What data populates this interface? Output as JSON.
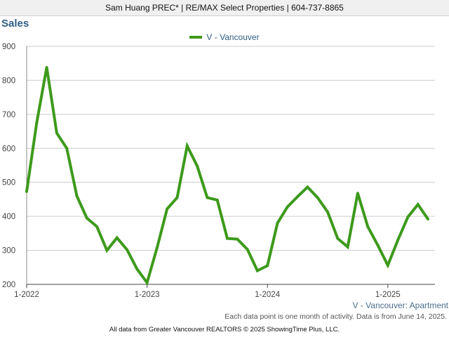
{
  "header": {
    "agent_line": "Sam Huang PREC* | RE/MAX Select Properties | 604-737-8865"
  },
  "chart_data": {
    "type": "line",
    "title": "Sales",
    "xlabel": "",
    "ylabel": "",
    "ylim": [
      200,
      900
    ],
    "yticks": [
      200,
      300,
      400,
      500,
      600,
      700,
      800,
      900
    ],
    "x_tick_labels": [
      "1-2022",
      "1-2023",
      "1-2024",
      "1-2025"
    ],
    "grid": true,
    "legend_position": "top-center",
    "colors": {
      "series": "#3d9a1c",
      "grid": "#cccccc",
      "axis": "#444444"
    },
    "series": [
      {
        "name": "V - Vancouver",
        "x": [
          "1-2022",
          "2-2022",
          "3-2022",
          "4-2022",
          "5-2022",
          "6-2022",
          "7-2022",
          "8-2022",
          "9-2022",
          "10-2022",
          "11-2022",
          "12-2022",
          "1-2023",
          "2-2023",
          "3-2023",
          "4-2023",
          "5-2023",
          "6-2023",
          "7-2023",
          "8-2023",
          "9-2023",
          "10-2023",
          "11-2023",
          "12-2023",
          "1-2024",
          "2-2024",
          "3-2024",
          "4-2024",
          "5-2024",
          "6-2024",
          "7-2024",
          "8-2024",
          "9-2024",
          "10-2024",
          "11-2024",
          "12-2024",
          "1-2025",
          "2-2025",
          "3-2025",
          "4-2025",
          "5-2025"
        ],
        "values": [
          473,
          675,
          838,
          645,
          600,
          460,
          395,
          370,
          300,
          337,
          302,
          245,
          205,
          308,
          422,
          455,
          607,
          548,
          455,
          448,
          335,
          333,
          303,
          240,
          255,
          380,
          428,
          458,
          486,
          455,
          413,
          335,
          310,
          468,
          370,
          315,
          256,
          330,
          398,
          435,
          392
        ]
      }
    ]
  },
  "series_note": "V - Vancouver: Apartment",
  "footnote": "Each data point is one month of activity. Data is from June 14, 2025.",
  "credit": "All data from Greater Vancouver REALTORS © 2025 ShowingTime Plus, LLC."
}
